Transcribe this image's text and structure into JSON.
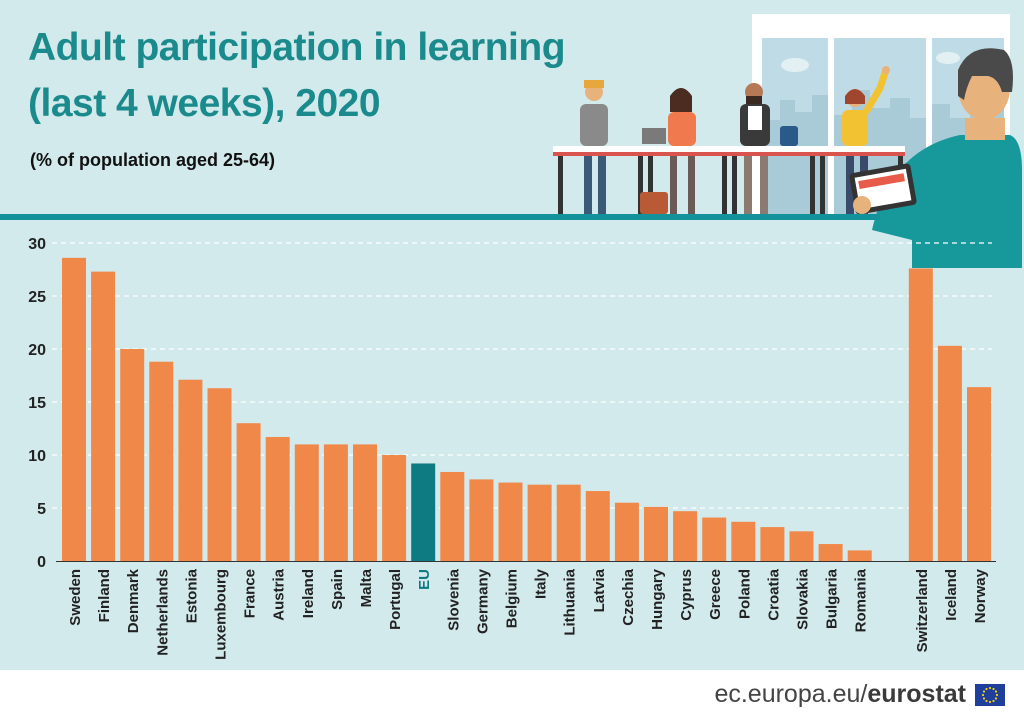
{
  "title_line1": "Adult participation in learning",
  "title_line2": "(last 4 weeks), 2020",
  "subtitle": "(% of population aged 25-64)",
  "footer": {
    "domain": "ec.europa.eu/",
    "brand": "eurostat"
  },
  "colors": {
    "bar": "#f0884a",
    "eu_bar": "#0e7a82",
    "accent": "#12929a",
    "background": "#d3eaec"
  },
  "chart_data": {
    "type": "bar",
    "title": "Adult participation in learning (last 4 weeks), 2020",
    "subtitle": "(% of population aged 25-64)",
    "ylim": [
      0,
      30
    ],
    "yticks": [
      0,
      5,
      10,
      15,
      20,
      25,
      30
    ],
    "grid": true,
    "categories": [
      "Sweden",
      "Finland",
      "Denmark",
      "Netherlands",
      "Estonia",
      "Luxembourg",
      "France",
      "Austria",
      "Ireland",
      "Spain",
      "Malta",
      "Portugal",
      "EU",
      "Slovenia",
      "Germany",
      "Belgium",
      "Italy",
      "Lithuania",
      "Latvia",
      "Czechia",
      "Hungary",
      "Cyprus",
      "Greece",
      "Poland",
      "Croatia",
      "Slovakia",
      "Bulgaria",
      "Romania",
      "Switzerland",
      "Iceland",
      "Norway"
    ],
    "values": [
      28.6,
      27.3,
      20.0,
      18.8,
      17.1,
      16.3,
      13.0,
      11.7,
      11.0,
      11.0,
      11.0,
      10.0,
      9.2,
      8.4,
      7.7,
      7.4,
      7.2,
      7.2,
      6.6,
      5.5,
      5.1,
      4.7,
      4.1,
      3.7,
      3.2,
      2.8,
      1.6,
      1.0,
      27.6,
      20.3,
      16.4
    ],
    "highlight": [
      "EU"
    ]
  }
}
